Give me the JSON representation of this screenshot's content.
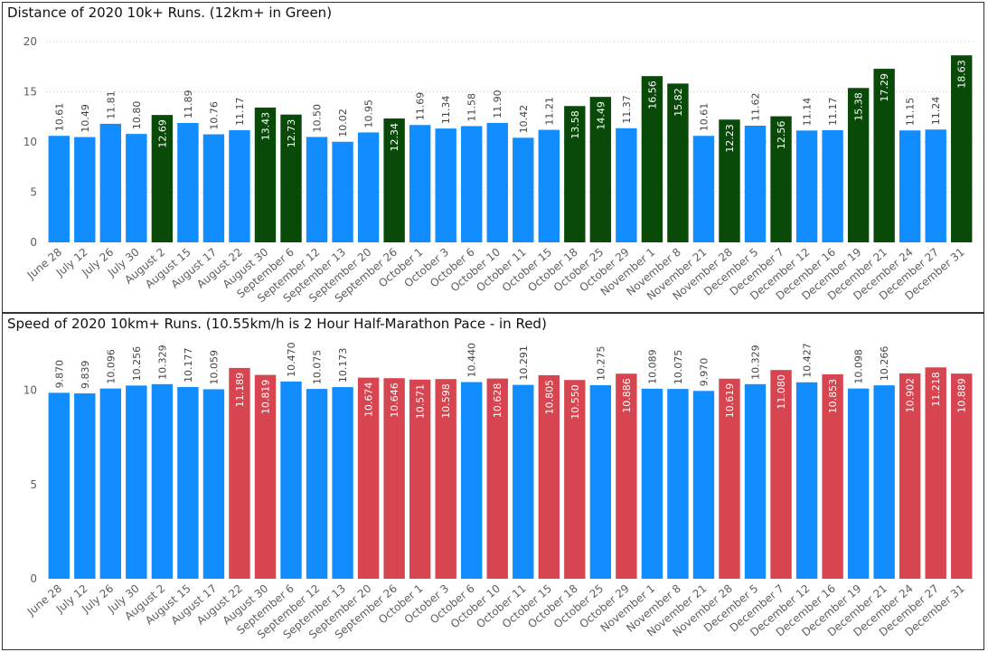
{
  "colors": {
    "normal": "#118DFF",
    "highlight_green": "#094A09",
    "highlight_red": "#D64550",
    "grid": "#c8c8c8"
  },
  "chart_data": [
    {
      "type": "bar",
      "title": "Distance of 2020 10k+ Runs. (12km+ in Green)",
      "xlabel": "",
      "ylabel": "",
      "ylim": [
        0,
        20
      ],
      "yticks": [
        "0",
        "5",
        "10",
        "15",
        "20"
      ],
      "grid": true,
      "categories": [
        "June 28",
        "July 12",
        "July 26",
        "July 30",
        "August 2",
        "August 15",
        "August 17",
        "August 22",
        "August 30",
        "September 6",
        "September 12",
        "September 13",
        "September 20",
        "September 26",
        "October 1",
        "October 3",
        "October 6",
        "October 10",
        "October 11",
        "October 15",
        "October 18",
        "October 25",
        "October 29",
        "November 1",
        "November 8",
        "November 21",
        "November 28",
        "December 5",
        "December 7",
        "December 12",
        "December 16",
        "December 19",
        "December 21",
        "December 24",
        "December 27",
        "December 31"
      ],
      "values": [
        10.61,
        10.49,
        11.81,
        10.8,
        12.69,
        11.89,
        10.76,
        11.17,
        13.43,
        12.73,
        10.5,
        10.02,
        10.95,
        12.34,
        11.69,
        11.34,
        11.58,
        11.9,
        10.42,
        11.21,
        13.58,
        14.49,
        11.37,
        16.56,
        15.82,
        10.61,
        12.23,
        11.62,
        12.56,
        11.14,
        11.17,
        15.38,
        17.29,
        11.15,
        11.24,
        18.63
      ],
      "labels": [
        "10.61",
        "10.49",
        "11.81",
        "10.80",
        "12.69",
        "11.89",
        "10.76",
        "11.17",
        "13.43",
        "12.73",
        "10.50",
        "10.02",
        "10.95",
        "12.34",
        "11.69",
        "11.34",
        "11.58",
        "11.90",
        "10.42",
        "11.21",
        "13.58",
        "14.49",
        "11.37",
        "16.56",
        "15.82",
        "10.61",
        "12.23",
        "11.62",
        "12.56",
        "11.14",
        "11.17",
        "15.38",
        "17.29",
        "11.15",
        "11.24",
        "18.63"
      ],
      "highlight_threshold": 12,
      "highlight_color": "#094A09"
    },
    {
      "type": "bar",
      "title": "Speed of 2020 10km+ Runs. (10.55km/h is 2 Hour Half-Marathon Pace - in Red)",
      "xlabel": "",
      "ylabel": "",
      "ylim": [
        0,
        12
      ],
      "yticks": [
        "0",
        "5",
        "10"
      ],
      "grid": false,
      "categories": [
        "June 28",
        "July 12",
        "July 26",
        "July 30",
        "August 2",
        "August 15",
        "August 17",
        "August 22",
        "August 30",
        "September 6",
        "September 12",
        "September 13",
        "September 20",
        "September 26",
        "October 1",
        "October 3",
        "October 6",
        "October 10",
        "October 11",
        "October 15",
        "October 18",
        "October 25",
        "October 29",
        "November 1",
        "November 8",
        "November 21",
        "November 28",
        "December 5",
        "December 7",
        "December 12",
        "December 16",
        "December 19",
        "December 21",
        "December 24",
        "December 27",
        "December 31"
      ],
      "values": [
        9.87,
        9.839,
        10.096,
        10.256,
        10.329,
        10.177,
        10.059,
        11.189,
        10.819,
        10.47,
        10.075,
        10.173,
        10.674,
        10.646,
        10.571,
        10.598,
        10.44,
        10.628,
        10.291,
        10.805,
        10.55,
        10.275,
        10.886,
        10.089,
        10.075,
        9.97,
        10.619,
        10.329,
        11.08,
        10.427,
        10.853,
        10.098,
        10.266,
        10.902,
        11.218,
        10.889
      ],
      "labels": [
        "9.870",
        "9.839",
        "10.096",
        "10.256",
        "10.329",
        "10.177",
        "10.059",
        "11.189",
        "10.819",
        "10.470",
        "10.075",
        "10.173",
        "10.674",
        "10.646",
        "10.571",
        "10.598",
        "10.440",
        "10.628",
        "10.291",
        "10.805",
        "10.550",
        "10.275",
        "10.886",
        "10.089",
        "10.075",
        "9.970",
        "10.619",
        "10.329",
        "11.080",
        "10.427",
        "10.853",
        "10.098",
        "10.266",
        "10.902",
        "11.218",
        "10.889"
      ],
      "highlight_threshold": 10.55,
      "highlight_color": "#D64550"
    }
  ]
}
